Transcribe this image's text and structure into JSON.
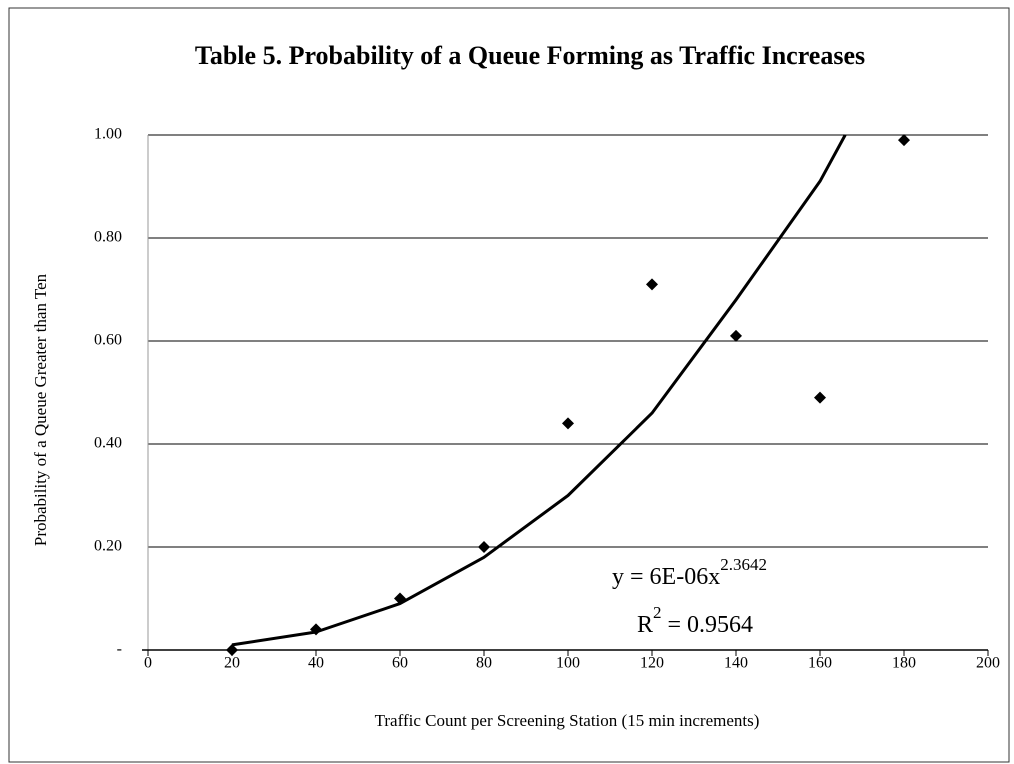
{
  "chart_data": {
    "type": "scatter",
    "title": "Table 5.  Probability of a Queue Forming as Traffic Increases",
    "x_label": "Traffic Count per Screening Station (15 min increments)",
    "y_label": "Probability of a Queue Greater than Ten",
    "x": [
      20,
      40,
      60,
      80,
      100,
      120,
      140,
      160,
      180
    ],
    "values": [
      0,
      0.04,
      0.1,
      0.2,
      0.44,
      0.71,
      0.61,
      0.49,
      0.99
    ],
    "color": "#000000",
    "trendline": {
      "x": [
        20,
        40,
        60,
        80,
        100,
        120,
        140,
        160,
        166
      ],
      "values": [
        0.01,
        0.035,
        0.09,
        0.18,
        0.3,
        0.46,
        0.68,
        0.91,
        1.0
      ]
    },
    "annotations": [
      {
        "text": "y = 6E-06x",
        "sup": "2.3642"
      },
      {
        "text": "R",
        "sup": "2",
        "rest": " = 0.9564"
      }
    ],
    "xlim": [
      0,
      200
    ],
    "xticks": [
      0,
      20,
      40,
      60,
      80,
      100,
      120,
      140,
      160,
      180,
      200
    ],
    "ylim": [
      0,
      1
    ],
    "yticks": [
      {
        "value": 0,
        "label": "-"
      },
      {
        "value": 0.2,
        "label": "0.20"
      },
      {
        "value": 0.4,
        "label": "0.40"
      },
      {
        "value": 0.6,
        "label": "0.60"
      },
      {
        "value": 0.8,
        "label": "0.80"
      },
      {
        "value": 1,
        "label": "1.00"
      }
    ],
    "grid": true
  }
}
